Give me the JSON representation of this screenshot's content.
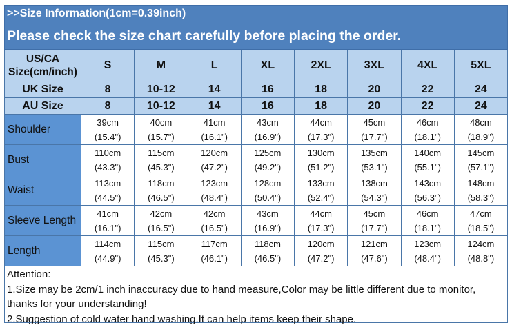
{
  "banner": {
    "title": ">>Size Information(1cm=0.39inch)",
    "subtitle": "Please check the size chart carefully before placing the order."
  },
  "colors": {
    "banner": "#4f81bd",
    "header": "#b9d3ee",
    "row_label": "#5b93d3",
    "border": "#4a76a8"
  },
  "table": {
    "header_label": "US/CA Size(cm/inch)",
    "sizes": [
      "S",
      "M",
      "L",
      "XL",
      "2XL",
      "3XL",
      "4XL",
      "5XL"
    ],
    "size_rows": [
      {
        "label": "UK Size",
        "values": [
          "8",
          "10-12",
          "14",
          "16",
          "18",
          "20",
          "22",
          "24"
        ]
      },
      {
        "label": "AU  Size",
        "values": [
          "8",
          "10-12",
          "14",
          "16",
          "18",
          "20",
          "22",
          "24"
        ]
      }
    ],
    "measure_rows": [
      {
        "label": "Shoulder",
        "cm": [
          "39cm",
          "40cm",
          "41cm",
          "43cm",
          "44cm",
          "45cm",
          "46cm",
          "48cm"
        ],
        "inch": [
          "(15.4\")",
          "(15.7\")",
          "(16.1\")",
          "(16.9\")",
          "(17.3\")",
          "(17.7\")",
          "(18.1\")",
          "(18.9\")"
        ]
      },
      {
        "label": "Bust",
        "cm": [
          "110cm",
          "115cm",
          "120cm",
          "125cm",
          "130cm",
          "135cm",
          "140cm",
          "145cm"
        ],
        "inch": [
          "(43.3\")",
          "(45.3\")",
          "(47.2\")",
          "(49.2\")",
          "(51.2\")",
          "(53.1\")",
          "(55.1\")",
          "(57.1\")"
        ]
      },
      {
        "label": "Waist",
        "cm": [
          "113cm",
          "118cm",
          "123cm",
          "128cm",
          "133cm",
          "138cm",
          "143cm",
          "148cm"
        ],
        "inch": [
          "(44.5\")",
          "(46.5\")",
          "(48.4\")",
          "(50.4\")",
          "(52.4\")",
          "(54.3\")",
          "(56.3\")",
          "(58.3\")"
        ]
      },
      {
        "label": "Sleeve Length",
        "cm": [
          "41cm",
          "42cm",
          "42cm",
          "43cm",
          "44cm",
          "45cm",
          "46cm",
          "47cm"
        ],
        "inch": [
          "(16.1\")",
          "(16.5\")",
          "(16.5\")",
          "(16.9\")",
          "(17.3\")",
          "(17.7\")",
          "(18.1\")",
          "(18.5\")"
        ]
      },
      {
        "label": "Length",
        "cm": [
          "114cm",
          "115cm",
          "117cm",
          "118cm",
          "120cm",
          "121cm",
          "123cm",
          "124cm"
        ],
        "inch": [
          "(44.9\")",
          "(45.3\")",
          "(46.1\")",
          "(46.5\")",
          "(47.2\")",
          "(47.6\")",
          "(48.4\")",
          "(48.8\")"
        ]
      }
    ]
  },
  "attention": {
    "title": "Attention:",
    "line1": "1.Size may be 2cm/1  inch inaccuracy due to hand measure,Color may be little different due to monitor,",
    "line1b": "thanks for your understanding!",
    "line2": "2.Suggestion of cold water hand washing.It can help items keep their shape."
  }
}
